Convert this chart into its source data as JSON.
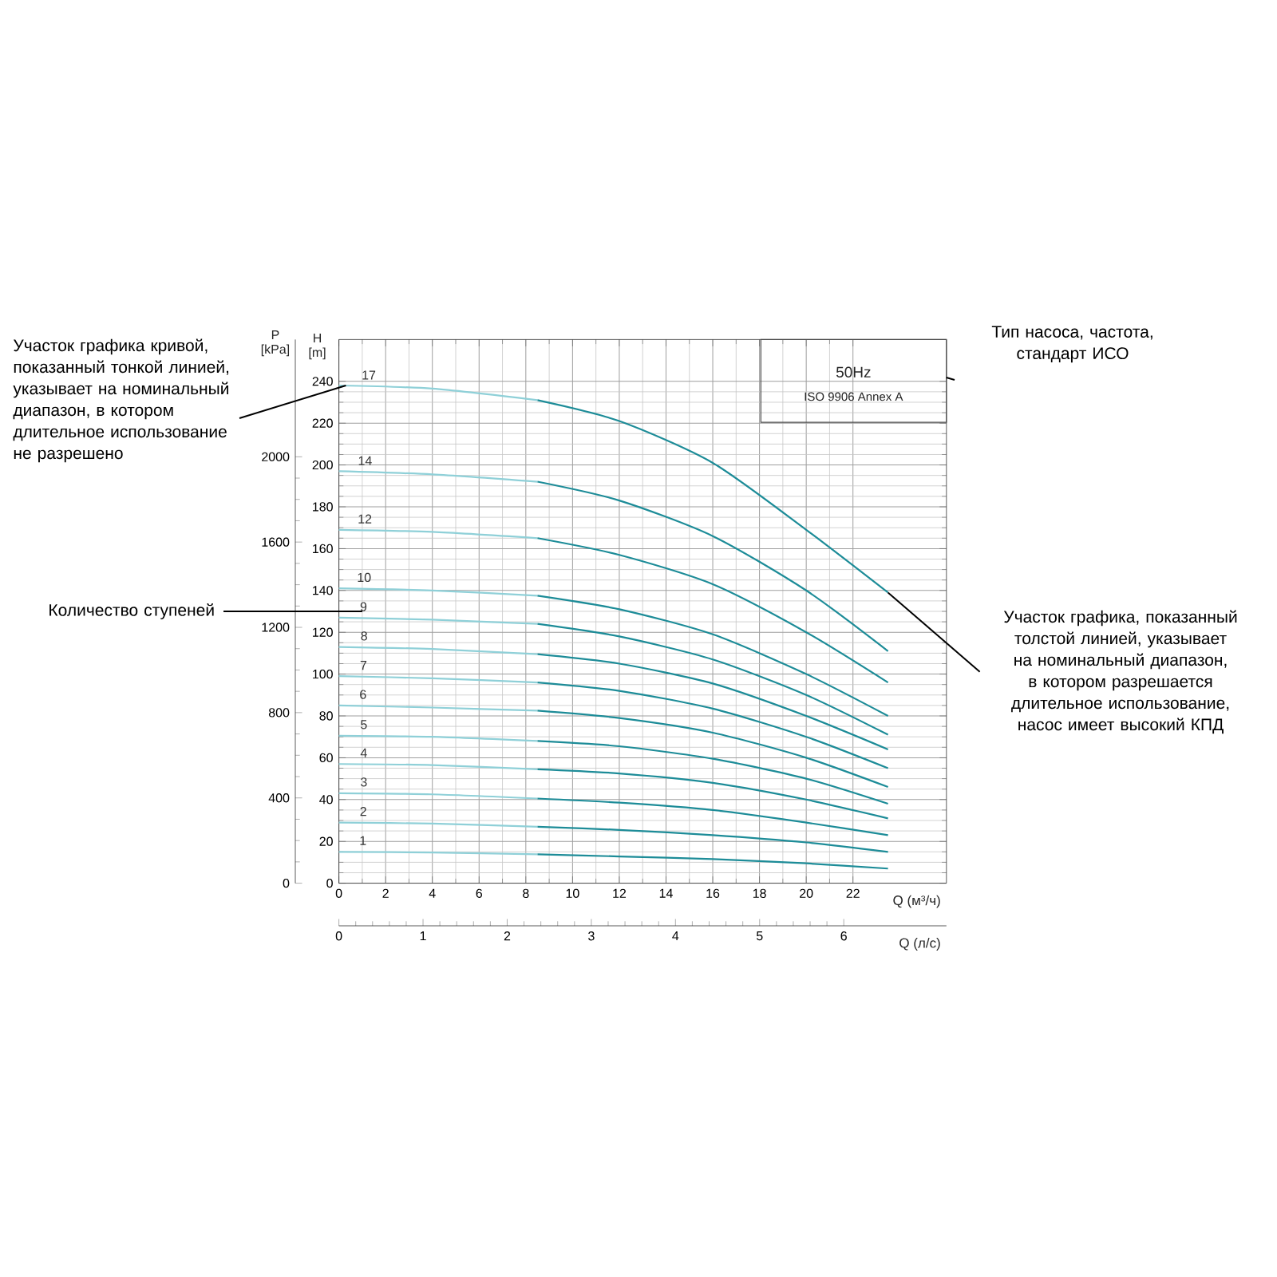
{
  "chart_data": {
    "type": "line",
    "xlabel": "Q (м³/ч)",
    "ylabel": "H [m]",
    "y2label": "P [kPa]",
    "x2label": "Q (л/с)",
    "xlim": [
      0,
      26
    ],
    "xticks": [
      0,
      2,
      4,
      6,
      8,
      10,
      12,
      14,
      16,
      18,
      20,
      22
    ],
    "ylim": [
      0,
      260
    ],
    "yticks": [
      0,
      20,
      40,
      60,
      80,
      100,
      120,
      140,
      160,
      180,
      200,
      220,
      240
    ],
    "y2lim": [
      0,
      2550
    ],
    "y2ticks": [
      0,
      400,
      800,
      1200,
      1600,
      2000
    ],
    "x2lim": [
      0,
      7.22
    ],
    "x2ticks": [
      0,
      1,
      2,
      3,
      4,
      5,
      6
    ],
    "grid": true,
    "marker": "none",
    "series": [
      {
        "name": "17",
        "color": "#8fd0d8",
        "x": [
          0,
          4,
          8.5
        ],
        "values": [
          238,
          236.5,
          231
        ]
      },
      {
        "color": "#1d8c98",
        "x": [
          8.5,
          12,
          16,
          20,
          23.5
        ],
        "values": [
          231,
          221,
          201,
          169,
          139
        ]
      },
      {
        "name": "14",
        "color": "#8fd0d8",
        "x": [
          0,
          4,
          8.5
        ],
        "values": [
          197,
          195.5,
          192
        ]
      },
      {
        "color": "#1d8c98",
        "x": [
          8.5,
          12,
          16,
          20,
          23.5
        ],
        "values": [
          192,
          183,
          166,
          140,
          111
        ]
      },
      {
        "name": "12",
        "color": "#8fd0d8",
        "x": [
          0,
          4,
          8.5
        ],
        "values": [
          169,
          168,
          165
        ]
      },
      {
        "color": "#1d8c98",
        "x": [
          8.5,
          12,
          16,
          20,
          23.5
        ],
        "values": [
          165,
          157,
          143,
          120,
          96
        ]
      },
      {
        "name": "10",
        "color": "#8fd0d8",
        "x": [
          0,
          4,
          8.5
        ],
        "values": [
          141,
          140,
          137.5
        ]
      },
      {
        "color": "#1d8c98",
        "x": [
          8.5,
          12,
          16,
          20,
          23.5
        ],
        "values": [
          137.5,
          131,
          119,
          100,
          80
        ]
      },
      {
        "name": "9",
        "color": "#8fd0d8",
        "x": [
          0,
          4,
          8.5
        ],
        "values": [
          127,
          126,
          124
        ]
      },
      {
        "color": "#1d8c98",
        "x": [
          8.5,
          12,
          16,
          20,
          23.5
        ],
        "values": [
          124,
          118,
          107,
          90,
          71
        ]
      },
      {
        "name": "8",
        "color": "#8fd0d8",
        "x": [
          0,
          4,
          8.5
        ],
        "values": [
          113,
          112,
          109.5
        ]
      },
      {
        "color": "#1d8c98",
        "x": [
          8.5,
          12,
          16,
          20,
          23.5
        ],
        "values": [
          109.5,
          105,
          95.5,
          80,
          64
        ]
      },
      {
        "name": "7",
        "color": "#8fd0d8",
        "x": [
          0,
          4,
          8.5
        ],
        "values": [
          99,
          98,
          96
        ]
      },
      {
        "color": "#1d8c98",
        "x": [
          8.5,
          12,
          16,
          20,
          23.5
        ],
        "values": [
          96,
          92,
          83.5,
          70,
          55
        ]
      },
      {
        "name": "6",
        "color": "#8fd0d8",
        "x": [
          0,
          4,
          8.5
        ],
        "values": [
          85,
          84,
          82.5
        ]
      },
      {
        "color": "#1d8c98",
        "x": [
          8.5,
          12,
          16,
          20,
          23.5
        ],
        "values": [
          82.5,
          79,
          72,
          60,
          46
        ]
      },
      {
        "name": "5",
        "color": "#8fd0d8",
        "x": [
          0,
          4,
          8.5
        ],
        "values": [
          70.5,
          70,
          68
        ]
      },
      {
        "color": "#1d8c98",
        "x": [
          8.5,
          12,
          16,
          20,
          23.5
        ],
        "values": [
          68,
          65.5,
          59.5,
          50,
          38
        ]
      },
      {
        "name": "4",
        "color": "#8fd0d8",
        "x": [
          0,
          4,
          8.5
        ],
        "values": [
          57,
          56.5,
          54.5
        ]
      },
      {
        "color": "#1d8c98",
        "x": [
          8.5,
          12,
          16,
          20,
          23.5
        ],
        "values": [
          54.5,
          52.5,
          48,
          40,
          31
        ]
      },
      {
        "name": "3",
        "color": "#8fd0d8",
        "x": [
          0,
          4,
          8.5
        ],
        "values": [
          43,
          42.5,
          40.5
        ]
      },
      {
        "color": "#1d8c98",
        "x": [
          8.5,
          12,
          16,
          20,
          23.5
        ],
        "values": [
          40.5,
          38.5,
          35,
          29,
          23
        ]
      },
      {
        "name": "2",
        "color": "#8fd0d8",
        "x": [
          0,
          4,
          8.5
        ],
        "values": [
          29,
          28.5,
          27
        ]
      },
      {
        "color": "#1d8c98",
        "x": [
          8.5,
          12,
          16,
          20,
          23.5
        ],
        "values": [
          27,
          25.5,
          23,
          19.5,
          15
        ]
      },
      {
        "name": "1",
        "color": "#8fd0d8",
        "x": [
          0,
          4,
          8.5
        ],
        "values": [
          15,
          14.7,
          13.8
        ]
      },
      {
        "color": "#1d8c98",
        "x": [
          8.5,
          12,
          16,
          20,
          23.5
        ],
        "values": [
          13.8,
          12.8,
          11.5,
          9.5,
          7
        ]
      }
    ],
    "annotations": [
      {
        "text": "Участок графика кривой, показанный тонкой линией, указывает на номинальный диапазон, в котором длительное использование не разрешено",
        "x": 0.3,
        "y": 238
      },
      {
        "text": "Количество ступеней",
        "x": 1,
        "y": 130
      },
      "Тип насоса, частота, стандарт ИСО",
      "Участок графика, показанный толстой линией, указывает на номинальный диапазон, в котором разрешается длительное использование, насос имеет высокий КПД",
      "50Hz",
      "ISO 9906 Annex A"
    ]
  }
}
